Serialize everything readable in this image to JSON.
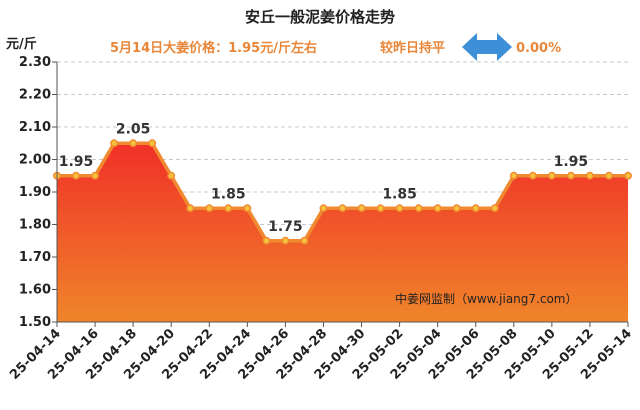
{
  "header": {
    "title": "安丘一般泥姜价格走势",
    "price_text": "5月14日大姜价格：1.95元/斤左右",
    "compare_text": "较昨日持平",
    "change_text": "0.00%",
    "unit": "元/斤",
    "watermark": "中姜网监制（www.jiang7.com）"
  },
  "colors": {
    "accent": "#e8873a",
    "arrow": "#3d8fd8",
    "fill_top": "#f03028",
    "fill_bottom": "#f0852a",
    "line": "#f08a30"
  },
  "chart_data": {
    "type": "area",
    "title": "安丘一般泥姜价格走势",
    "ylabel": "元/斤",
    "xlabel": "",
    "ylim": [
      1.5,
      2.3
    ],
    "yticks": [
      "1.50",
      "1.60",
      "1.70",
      "1.80",
      "1.90",
      "2.00",
      "2.10",
      "2.20",
      "2.30"
    ],
    "x_tick_labels": [
      "25-04-14",
      "25-04-16",
      "25-04-18",
      "25-04-20",
      "25-04-22",
      "25-04-24",
      "25-04-26",
      "25-04-28",
      "25-04-30",
      "25-05-02",
      "25-05-04",
      "25-05-06",
      "25-05-08",
      "25-05-10",
      "25-05-12",
      "25-05-14"
    ],
    "x": [
      "25-04-14",
      "25-04-15",
      "25-04-16",
      "25-04-17",
      "25-04-18",
      "25-04-19",
      "25-04-20",
      "25-04-21",
      "25-04-22",
      "25-04-23",
      "25-04-24",
      "25-04-25",
      "25-04-26",
      "25-04-27",
      "25-04-28",
      "25-04-29",
      "25-04-30",
      "25-05-01",
      "25-05-02",
      "25-05-03",
      "25-05-04",
      "25-05-05",
      "25-05-06",
      "25-05-07",
      "25-05-08",
      "25-05-09",
      "25-05-10",
      "25-05-11",
      "25-05-12",
      "25-05-13",
      "25-05-14"
    ],
    "values": [
      1.95,
      1.95,
      1.95,
      2.05,
      2.05,
      2.05,
      1.95,
      1.85,
      1.85,
      1.85,
      1.85,
      1.75,
      1.75,
      1.75,
      1.85,
      1.85,
      1.85,
      1.85,
      1.85,
      1.85,
      1.85,
      1.85,
      1.85,
      1.85,
      1.95,
      1.95,
      1.95,
      1.95,
      1.95,
      1.95,
      1.95
    ],
    "data_labels": [
      {
        "index": 1,
        "text": "1.95"
      },
      {
        "index": 4,
        "text": "2.05"
      },
      {
        "index": 9,
        "text": "1.85"
      },
      {
        "index": 12,
        "text": "1.75"
      },
      {
        "index": 18,
        "text": "1.85"
      },
      {
        "index": 27,
        "text": "1.95"
      }
    ],
    "grid": true,
    "legend": "none"
  }
}
